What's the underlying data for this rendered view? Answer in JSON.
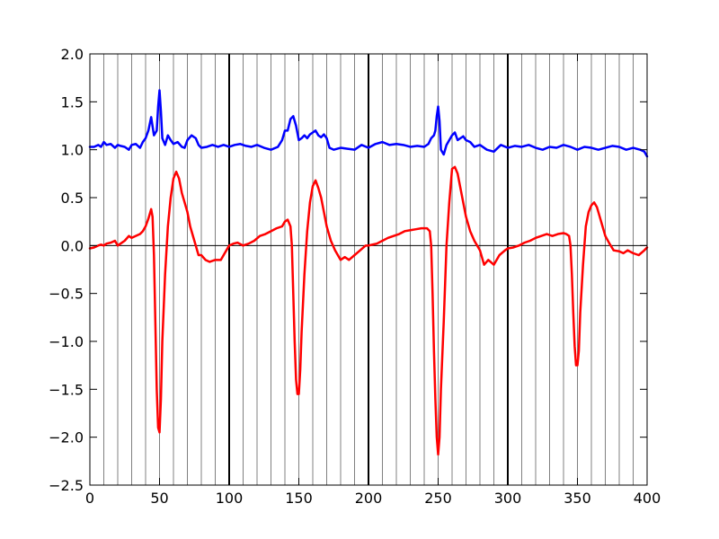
{
  "chart_data": {
    "type": "line",
    "title": "",
    "xlabel": "",
    "ylabel": "",
    "xlim": [
      0,
      400
    ],
    "ylim": [
      -2.5,
      2.0
    ],
    "x_ticks": [
      0,
      50,
      100,
      150,
      200,
      250,
      300,
      350,
      400
    ],
    "x_tick_labels": [
      "0",
      "50",
      "100",
      "150",
      "200",
      "250",
      "300",
      "350",
      "400"
    ],
    "y_ticks": [
      -2.5,
      -2.0,
      -1.5,
      -1.0,
      -0.5,
      0.0,
      0.5,
      1.0,
      1.5,
      2.0
    ],
    "y_tick_labels": [
      "−2.5",
      "−2.0",
      "−1.5",
      "−1.0",
      "−0.5",
      "0.0",
      "0.5",
      "1.0",
      "1.5",
      "2.0"
    ],
    "grid": {
      "vertical_lines_every": 10,
      "major_vertical_lines_at": [
        100,
        200,
        300
      ],
      "horizontal_zero_line": true,
      "color": "#808080",
      "major_color": "#000000"
    },
    "series": [
      {
        "color": "#0000ff",
        "x": [
          0,
          3,
          6,
          8,
          10,
          12,
          15,
          18,
          20,
          22,
          25,
          28,
          30,
          33,
          36,
          38,
          40,
          42,
          44,
          46,
          48,
          49,
          50,
          51,
          52,
          54,
          56,
          58,
          60,
          63,
          66,
          68,
          70,
          73,
          76,
          78,
          80,
          84,
          88,
          92,
          96,
          100,
          104,
          108,
          112,
          116,
          120,
          125,
          130,
          135,
          138,
          140,
          142,
          144,
          146,
          148,
          150,
          152,
          154,
          156,
          158,
          160,
          162,
          164,
          166,
          168,
          170,
          172,
          175,
          180,
          185,
          190,
          195,
          200,
          205,
          210,
          215,
          220,
          225,
          230,
          235,
          240,
          243,
          245,
          247,
          248,
          249,
          250,
          251,
          252,
          254,
          256,
          258,
          260,
          262,
          264,
          266,
          268,
          270,
          273,
          276,
          280,
          285,
          290,
          295,
          300,
          305,
          310,
          315,
          320,
          325,
          330,
          335,
          340,
          345,
          350,
          355,
          360,
          365,
          370,
          375,
          380,
          385,
          390,
          395,
          398,
          400
        ],
        "y": [
          1.03,
          1.03,
          1.05,
          1.03,
          1.08,
          1.05,
          1.06,
          1.02,
          1.05,
          1.04,
          1.03,
          1.0,
          1.05,
          1.06,
          1.02,
          1.08,
          1.12,
          1.2,
          1.34,
          1.15,
          1.2,
          1.45,
          1.62,
          1.4,
          1.12,
          1.05,
          1.15,
          1.1,
          1.06,
          1.08,
          1.03,
          1.02,
          1.1,
          1.15,
          1.12,
          1.05,
          1.02,
          1.03,
          1.05,
          1.03,
          1.05,
          1.03,
          1.05,
          1.06,
          1.04,
          1.03,
          1.05,
          1.02,
          1.0,
          1.03,
          1.1,
          1.2,
          1.2,
          1.32,
          1.35,
          1.25,
          1.1,
          1.12,
          1.15,
          1.12,
          1.16,
          1.18,
          1.2,
          1.15,
          1.13,
          1.16,
          1.12,
          1.02,
          1.0,
          1.02,
          1.01,
          1.0,
          1.05,
          1.02,
          1.06,
          1.08,
          1.05,
          1.06,
          1.05,
          1.03,
          1.04,
          1.03,
          1.06,
          1.12,
          1.15,
          1.2,
          1.35,
          1.45,
          1.3,
          1.0,
          0.95,
          1.05,
          1.1,
          1.15,
          1.18,
          1.1,
          1.12,
          1.14,
          1.1,
          1.08,
          1.03,
          1.05,
          1.0,
          0.98,
          1.05,
          1.02,
          1.04,
          1.03,
          1.05,
          1.02,
          1.0,
          1.03,
          1.02,
          1.05,
          1.03,
          1.0,
          1.03,
          1.02,
          1.0,
          1.02,
          1.04,
          1.03,
          1.0,
          1.02,
          1.0,
          0.98,
          0.93
        ]
      },
      {
        "color": "#ff0000",
        "x": [
          0,
          3,
          6,
          8,
          10,
          12,
          15,
          18,
          20,
          22,
          25,
          28,
          30,
          33,
          36,
          38,
          40,
          42,
          44,
          45,
          46,
          47,
          48,
          49,
          50,
          51,
          52,
          54,
          56,
          58,
          60,
          62,
          64,
          66,
          68,
          70,
          72,
          75,
          78,
          80,
          83,
          86,
          90,
          94,
          98,
          100,
          103,
          106,
          110,
          114,
          118,
          122,
          126,
          130,
          134,
          138,
          140,
          142,
          144,
          145,
          146,
          147,
          148,
          149,
          150,
          151,
          152,
          154,
          156,
          158,
          160,
          162,
          164,
          166,
          168,
          170,
          173,
          176,
          178,
          180,
          183,
          186,
          190,
          194,
          198,
          200,
          203,
          206,
          210,
          214,
          218,
          222,
          226,
          230,
          234,
          238,
          242,
          244,
          245,
          246,
          247,
          248,
          249,
          250,
          251,
          252,
          254,
          256,
          258,
          260,
          262,
          264,
          266,
          268,
          270,
          273,
          276,
          280,
          283,
          286,
          290,
          294,
          298,
          300,
          304,
          308,
          312,
          316,
          320,
          324,
          328,
          332,
          336,
          340,
          342,
          344,
          345,
          346,
          347,
          348,
          349,
          350,
          351,
          352,
          354,
          356,
          358,
          360,
          362,
          364,
          366,
          368,
          370,
          373,
          376,
          380,
          383,
          386,
          390,
          394,
          398,
          400
        ],
        "y": [
          -0.03,
          -0.02,
          0.0,
          0.01,
          0.0,
          0.02,
          0.03,
          0.05,
          0.0,
          0.02,
          0.05,
          0.1,
          0.08,
          0.1,
          0.12,
          0.15,
          0.2,
          0.28,
          0.38,
          0.3,
          -0.1,
          -0.8,
          -1.5,
          -1.9,
          -1.95,
          -1.6,
          -1.0,
          -0.3,
          0.2,
          0.5,
          0.7,
          0.77,
          0.7,
          0.55,
          0.45,
          0.35,
          0.2,
          0.05,
          -0.1,
          -0.1,
          -0.15,
          -0.17,
          -0.15,
          -0.15,
          -0.05,
          0.0,
          0.02,
          0.03,
          0.0,
          0.02,
          0.05,
          0.1,
          0.12,
          0.15,
          0.18,
          0.2,
          0.25,
          0.27,
          0.2,
          0.0,
          -0.5,
          -1.0,
          -1.4,
          -1.55,
          -1.55,
          -1.3,
          -0.9,
          -0.3,
          0.15,
          0.45,
          0.62,
          0.68,
          0.6,
          0.5,
          0.35,
          0.2,
          0.05,
          -0.05,
          -0.1,
          -0.15,
          -0.12,
          -0.15,
          -0.1,
          -0.05,
          0.0,
          0.0,
          0.01,
          0.02,
          0.05,
          0.08,
          0.1,
          0.12,
          0.15,
          0.16,
          0.17,
          0.18,
          0.18,
          0.15,
          0.0,
          -0.5,
          -1.1,
          -1.6,
          -2.0,
          -2.18,
          -2.0,
          -1.5,
          -0.8,
          0.0,
          0.45,
          0.8,
          0.82,
          0.75,
          0.6,
          0.45,
          0.3,
          0.15,
          0.05,
          -0.05,
          -0.2,
          -0.15,
          -0.2,
          -0.1,
          -0.05,
          -0.03,
          -0.02,
          0.0,
          0.03,
          0.05,
          0.08,
          0.1,
          0.12,
          0.1,
          0.12,
          0.13,
          0.12,
          0.1,
          0.0,
          -0.3,
          -0.7,
          -1.05,
          -1.25,
          -1.25,
          -1.1,
          -0.7,
          -0.2,
          0.2,
          0.35,
          0.42,
          0.45,
          0.4,
          0.3,
          0.2,
          0.1,
          0.02,
          -0.05,
          -0.06,
          -0.08,
          -0.05,
          -0.08,
          -0.1,
          -0.05,
          -0.02
        ]
      }
    ]
  }
}
